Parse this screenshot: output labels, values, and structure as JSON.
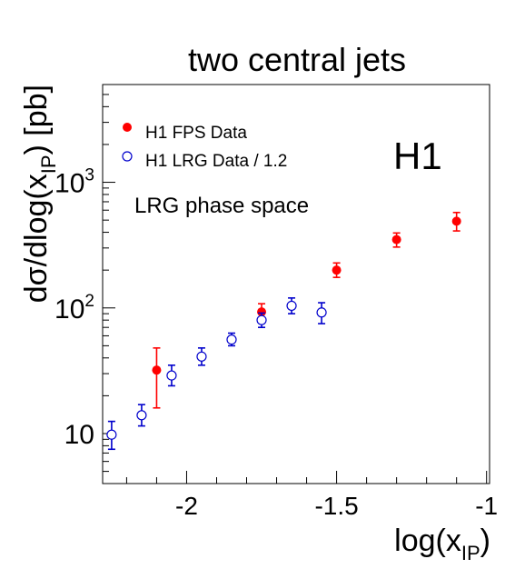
{
  "chart_data": {
    "type": "scatter",
    "title": "two central jets",
    "xlabel_base": "log(x",
    "xlabel_sub": "IP",
    "xlabel_tail": ")",
    "ylabel_main": "dσ/dlog(x",
    "ylabel_sub": "IP",
    "ylabel_tail": ") [pb]",
    "xlim": [
      -2.28,
      -0.99
    ],
    "ylim": [
      4.0,
      6000
    ],
    "y_scale": "log",
    "x_ticks": [
      {
        "value": -2.0,
        "label": "-2"
      },
      {
        "value": -1.5,
        "label": "-1.5"
      },
      {
        "value": -1.0,
        "label": "-1"
      }
    ],
    "y_ticks": [
      {
        "value": 10,
        "base": "10",
        "exp": ""
      },
      {
        "value": 100,
        "base": "10",
        "exp": "2"
      },
      {
        "value": 1000,
        "base": "10",
        "exp": "3"
      }
    ],
    "experiment_label": "H1",
    "phase_space_label": "LRG phase space",
    "legend_position": "top-left",
    "series": [
      {
        "name": "H1 FPS Data",
        "marker": "filled-circle",
        "color": "#ff0000",
        "points": [
          {
            "x": -2.1,
            "y": 32,
            "lo": 16,
            "hi": 48
          },
          {
            "x": -1.75,
            "y": 93,
            "lo": 77,
            "hi": 108
          },
          {
            "x": -1.5,
            "y": 200,
            "lo": 175,
            "hi": 228
          },
          {
            "x": -1.3,
            "y": 350,
            "lo": 305,
            "hi": 395
          },
          {
            "x": -1.1,
            "y": 490,
            "lo": 410,
            "hi": 575
          }
        ]
      },
      {
        "name": "H1 LRG Data / 1.2",
        "marker": "open-circle",
        "color": "#0000cc",
        "points": [
          {
            "x": -2.25,
            "y": 9.8,
            "lo": 7.5,
            "hi": 12.5
          },
          {
            "x": -2.15,
            "y": 14,
            "lo": 11.5,
            "hi": 17
          },
          {
            "x": -2.05,
            "y": 29,
            "lo": 24,
            "hi": 35
          },
          {
            "x": -1.95,
            "y": 41,
            "lo": 35,
            "hi": 48
          },
          {
            "x": -1.85,
            "y": 56,
            "lo": 50,
            "hi": 63
          },
          {
            "x": -1.75,
            "y": 80,
            "lo": 70,
            "hi": 91
          },
          {
            "x": -1.65,
            "y": 104,
            "lo": 90,
            "hi": 120
          },
          {
            "x": -1.55,
            "y": 92,
            "lo": 75,
            "hi": 110
          }
        ]
      }
    ]
  }
}
